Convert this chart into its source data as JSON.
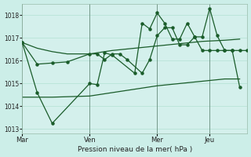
{
  "background_color": "#cceee8",
  "plot_bg_color": "#d4f0ec",
  "grid_color": "#aaddcc",
  "line_color": "#1a5c2a",
  "xlabel": "Pression niveau de la mer( hPa )",
  "ylim": [
    1012.8,
    1018.5
  ],
  "yticks": [
    1013,
    1014,
    1015,
    1016,
    1017,
    1018
  ],
  "xtick_labels": [
    "Mar",
    "Ven",
    "Mer",
    "Jeu"
  ],
  "xtick_pos": [
    0,
    9,
    18,
    25
  ],
  "vline_pos": [
    0,
    9,
    18,
    25
  ],
  "xlim": [
    0,
    30
  ],
  "series_jagged": {
    "x": [
      0,
      2,
      4,
      6,
      9,
      10,
      11,
      12,
      13,
      14,
      16,
      17,
      18,
      19,
      20,
      21,
      22,
      23,
      24,
      25,
      26,
      27,
      28,
      29,
      30
    ],
    "y": [
      1016.8,
      1015.85,
      1015.9,
      1015.95,
      1016.3,
      1016.3,
      1016.05,
      1016.3,
      1016.3,
      1016.05,
      1015.45,
      1016.05,
      1017.1,
      1017.45,
      1017.45,
      1016.7,
      1016.7,
      1017.05,
      1016.45,
      1016.45,
      1016.45,
      1016.45,
      1016.45,
      1016.45,
      1016.45
    ]
  },
  "series_volatile": {
    "x": [
      0,
      2,
      4,
      9,
      10,
      11,
      12,
      15,
      16,
      17,
      18,
      19,
      20,
      21,
      22,
      23,
      24,
      25,
      26,
      27,
      28,
      29
    ],
    "y": [
      1016.8,
      1014.6,
      1013.25,
      1015.0,
      1014.95,
      1016.35,
      1016.25,
      1015.45,
      1017.65,
      1017.4,
      1018.1,
      1017.65,
      1016.95,
      1016.95,
      1017.65,
      1017.05,
      1017.05,
      1018.3,
      1017.1,
      1016.45,
      1016.45,
      1014.85
    ]
  },
  "series_gradual": {
    "x": [
      0,
      2,
      4,
      6,
      9,
      12,
      15,
      18,
      21,
      24,
      27,
      29
    ],
    "y": [
      1016.8,
      1016.55,
      1016.4,
      1016.3,
      1016.3,
      1016.45,
      1016.55,
      1016.65,
      1016.75,
      1016.85,
      1016.9,
      1016.95
    ]
  },
  "series_low": {
    "x": [
      0,
      2,
      4,
      9,
      12,
      15,
      18,
      21,
      24,
      27,
      29
    ],
    "y": [
      1014.4,
      1014.4,
      1014.4,
      1014.45,
      1014.6,
      1014.75,
      1014.9,
      1015.0,
      1015.1,
      1015.2,
      1015.2
    ]
  }
}
